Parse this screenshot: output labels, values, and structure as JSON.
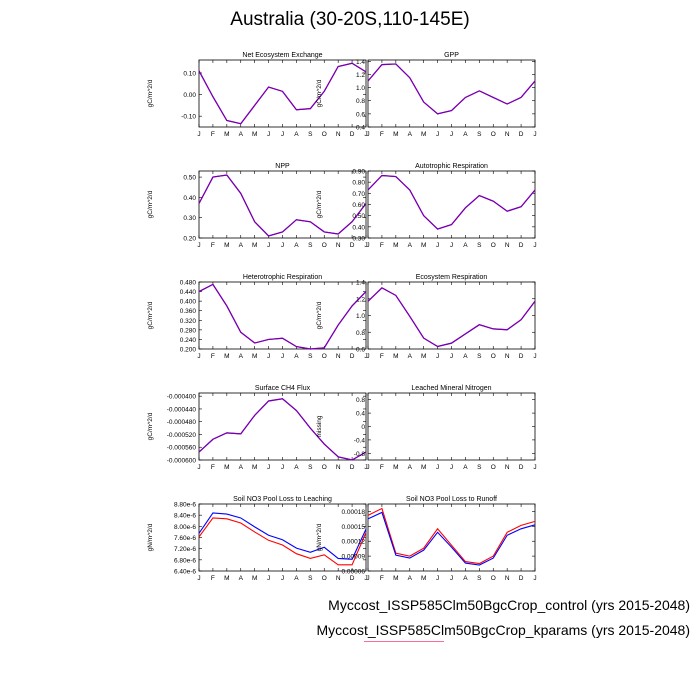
{
  "title": "Australia (30-20S,110-145E)",
  "legend": {
    "lines": [
      {
        "label": "Myccost_ISSP585Clm50BgcCrop_control (yrs 2015-2048)",
        "color": "#0000ff"
      },
      {
        "label": "Myccost_ISSP585Clm50BgcCrop_kparams (yrs 2015-2048)",
        "color": "#ff0000"
      }
    ]
  },
  "colors": {
    "control": "#0000ff",
    "kparams": "#ff0000",
    "overlap": "#6a00c8"
  },
  "chart_data": [
    {
      "type": "line",
      "title": "Net Ecosystem Exchange",
      "ylabel": "gC/m^2/d",
      "categories": [
        "J",
        "F",
        "M",
        "A",
        "M",
        "J",
        "J",
        "A",
        "S",
        "O",
        "N",
        "D",
        "J"
      ],
      "ylim": [
        -0.15,
        0.16
      ],
      "yticks": [
        -0.1,
        0.0,
        0.1
      ],
      "ytick_labels": [
        "-0.10",
        "0.00",
        "0.10"
      ],
      "series": [
        {
          "values": [
            0.11,
            -0.01,
            -0.12,
            -0.135,
            -0.05,
            0.035,
            0.015,
            -0.07,
            -0.065,
            0.015,
            0.13,
            0.145,
            0.105
          ]
        },
        {
          "values": [
            0.11,
            -0.01,
            -0.12,
            -0.135,
            -0.05,
            0.035,
            0.015,
            -0.07,
            -0.065,
            0.015,
            0.13,
            0.145,
            0.105
          ]
        }
      ]
    },
    {
      "type": "line",
      "title": "GPP",
      "ylabel": "gC/m^2/d",
      "categories": [
        "J",
        "F",
        "M",
        "A",
        "M",
        "J",
        "J",
        "A",
        "S",
        "O",
        "N",
        "D",
        "J"
      ],
      "ylim": [
        0.4,
        1.42
      ],
      "yticks": [
        0.4,
        0.6,
        0.8,
        1.0,
        1.2,
        1.4
      ],
      "ytick_labels": [
        "0.4",
        "0.6",
        "0.8",
        "1.0",
        "1.2",
        "1.4"
      ],
      "series": [
        {
          "values": [
            1.1,
            1.35,
            1.36,
            1.15,
            0.78,
            0.6,
            0.65,
            0.85,
            0.95,
            0.85,
            0.75,
            0.85,
            1.1
          ]
        },
        {
          "values": [
            1.1,
            1.35,
            1.36,
            1.15,
            0.78,
            0.6,
            0.65,
            0.85,
            0.95,
            0.85,
            0.75,
            0.85,
            1.1
          ]
        }
      ]
    },
    {
      "type": "line",
      "title": "NPP",
      "ylabel": "gC/m^2/d",
      "categories": [
        "J",
        "F",
        "M",
        "A",
        "M",
        "J",
        "J",
        "A",
        "S",
        "O",
        "N",
        "D",
        "J"
      ],
      "ylim": [
        0.2,
        0.53
      ],
      "yticks": [
        0.2,
        0.3,
        0.4,
        0.5
      ],
      "ytick_labels": [
        "0.20",
        "0.30",
        "0.40",
        "0.50"
      ],
      "series": [
        {
          "values": [
            0.37,
            0.5,
            0.51,
            0.42,
            0.28,
            0.21,
            0.23,
            0.29,
            0.28,
            0.23,
            0.22,
            0.28,
            0.37
          ]
        },
        {
          "values": [
            0.37,
            0.5,
            0.51,
            0.42,
            0.28,
            0.21,
            0.23,
            0.29,
            0.28,
            0.23,
            0.22,
            0.28,
            0.37
          ]
        }
      ]
    },
    {
      "type": "line",
      "title": "Autotrophic Respiration",
      "ylabel": "gC/m^2/d",
      "categories": [
        "J",
        "F",
        "M",
        "A",
        "M",
        "J",
        "J",
        "A",
        "S",
        "O",
        "N",
        "D",
        "J"
      ],
      "ylim": [
        0.3,
        0.9
      ],
      "yticks": [
        0.3,
        0.4,
        0.5,
        0.6,
        0.7,
        0.8,
        0.9
      ],
      "ytick_labels": [
        "0.30",
        "0.40",
        "0.50",
        "0.60",
        "0.70",
        "0.80",
        "0.90"
      ],
      "series": [
        {
          "values": [
            0.73,
            0.86,
            0.85,
            0.73,
            0.5,
            0.38,
            0.42,
            0.57,
            0.68,
            0.63,
            0.54,
            0.58,
            0.73
          ]
        },
        {
          "values": [
            0.73,
            0.86,
            0.85,
            0.73,
            0.5,
            0.38,
            0.42,
            0.57,
            0.68,
            0.63,
            0.54,
            0.58,
            0.73
          ]
        }
      ]
    },
    {
      "type": "line",
      "title": "Heterotrophic Respiration",
      "ylabel": "gC/m^2/d",
      "categories": [
        "J",
        "F",
        "M",
        "A",
        "M",
        "J",
        "J",
        "A",
        "S",
        "O",
        "N",
        "D",
        "J"
      ],
      "ylim": [
        0.2,
        0.48
      ],
      "yticks": [
        0.2,
        0.24,
        0.28,
        0.32,
        0.36,
        0.4,
        0.44,
        0.48
      ],
      "ytick_labels": [
        "0.200",
        "0.240",
        "0.280",
        "0.320",
        "0.360",
        "0.400",
        "0.440",
        "0.480"
      ],
      "series": [
        {
          "values": [
            0.44,
            0.47,
            0.38,
            0.27,
            0.225,
            0.24,
            0.245,
            0.21,
            0.2,
            0.205,
            0.3,
            0.38,
            0.44
          ]
        },
        {
          "values": [
            0.44,
            0.47,
            0.38,
            0.27,
            0.225,
            0.24,
            0.245,
            0.21,
            0.2,
            0.205,
            0.3,
            0.38,
            0.44
          ]
        }
      ]
    },
    {
      "type": "line",
      "title": "Ecosystem Respiration",
      "ylabel": "gC/m^2/d",
      "categories": [
        "J",
        "F",
        "M",
        "A",
        "M",
        "J",
        "J",
        "A",
        "S",
        "O",
        "N",
        "D",
        "J"
      ],
      "ylim": [
        0.6,
        1.4
      ],
      "yticks": [
        0.6,
        0.8,
        1.0,
        1.2,
        1.4
      ],
      "ytick_labels": [
        "0.6",
        "0.8",
        "1.0",
        "1.2",
        "1.4"
      ],
      "series": [
        {
          "values": [
            1.17,
            1.33,
            1.24,
            0.99,
            0.73,
            0.63,
            0.67,
            0.78,
            0.89,
            0.84,
            0.83,
            0.95,
            1.17
          ]
        },
        {
          "values": [
            1.17,
            1.33,
            1.24,
            0.99,
            0.73,
            0.63,
            0.67,
            0.78,
            0.89,
            0.84,
            0.83,
            0.95,
            1.17
          ]
        }
      ]
    },
    {
      "type": "line",
      "title": "Surface CH4 Flux",
      "ylabel": "gC/m^2/d",
      "categories": [
        "J",
        "F",
        "M",
        "A",
        "M",
        "J",
        "J",
        "A",
        "S",
        "O",
        "N",
        "D",
        "J"
      ],
      "ylim": [
        -0.0006,
        -0.00039
      ],
      "yticks": [
        -0.0006,
        -0.00056,
        -0.00052,
        -0.00048,
        -0.00044,
        -0.0004
      ],
      "ytick_labels": [
        "-0.000600",
        "-0.000560",
        "-0.000520",
        "-0.000480",
        "-0.000440",
        "-0.000400"
      ],
      "series": [
        {
          "values": [
            -0.000575,
            -0.000535,
            -0.000515,
            -0.000518,
            -0.00046,
            -0.000415,
            -0.000408,
            -0.000445,
            -0.0005,
            -0.00055,
            -0.00059,
            -0.0006,
            -0.000575
          ]
        },
        {
          "values": [
            -0.000575,
            -0.000535,
            -0.000515,
            -0.000518,
            -0.00046,
            -0.000415,
            -0.000408,
            -0.000445,
            -0.0005,
            -0.00055,
            -0.00059,
            -0.0006,
            -0.000575
          ]
        }
      ]
    },
    {
      "type": "line",
      "title": "Leached Mineral Nitrogen",
      "ylabel": "missing",
      "categories": [
        "J",
        "F",
        "M",
        "A",
        "M",
        "J",
        "J",
        "A",
        "S",
        "O",
        "N",
        "D",
        "J"
      ],
      "ylim": [
        -1.0,
        1.0
      ],
      "yticks": [
        -0.8,
        -0.4,
        0.0,
        0.4,
        0.8
      ],
      "ytick_labels": [
        "-0.8",
        "-0.4",
        "0",
        "0.4",
        "0.8"
      ],
      "series": []
    },
    {
      "type": "line",
      "title": "Soil NO3 Pool Loss to Leaching",
      "ylabel": "gN/m^2/d",
      "categories": [
        "J",
        "F",
        "M",
        "A",
        "M",
        "J",
        "J",
        "A",
        "S",
        "O",
        "N",
        "D",
        "J"
      ],
      "ylim": [
        6.4e-06,
        8.8e-06
      ],
      "yticks": [
        6.4e-06,
        6.8e-06,
        7.2e-06,
        7.6e-06,
        8e-06,
        8.4e-06,
        8.8e-06
      ],
      "ytick_labels": [
        "6.40e-6",
        "6.80e-6",
        "7.20e-6",
        "7.60e-6",
        "8.00e-6",
        "8.40e-6",
        "8.80e-6"
      ],
      "series": [
        {
          "values": [
            7.75e-06,
            8.48e-06,
            8.44e-06,
            8.3e-06,
            7.98e-06,
            7.68e-06,
            7.52e-06,
            7.22e-06,
            7.07e-06,
            7.25e-06,
            6.85e-06,
            6.82e-06,
            7.9e-06
          ]
        },
        {
          "values": [
            7.62e-06,
            8.3e-06,
            8.27e-06,
            8.12e-06,
            7.8e-06,
            7.5e-06,
            7.33e-06,
            7.02e-06,
            6.85e-06,
            6.98e-06,
            6.62e-06,
            6.62e-06,
            7.78e-06
          ]
        }
      ]
    },
    {
      "type": "line",
      "title": "Soil NO3 Pool Loss to Runoff",
      "ylabel": "gN/m^2/d",
      "categories": [
        "J",
        "F",
        "M",
        "A",
        "M",
        "J",
        "J",
        "A",
        "S",
        "O",
        "N",
        "D",
        "J"
      ],
      "ylim": [
        6e-05,
        0.000195
      ],
      "yticks": [
        6e-05,
        9e-05,
        0.00012,
        0.00015,
        0.00018
      ],
      "ytick_labels": [
        "0.00006",
        "0.00009",
        "0.00012",
        "0.00015",
        "0.00018"
      ],
      "series": [
        {
          "values": [
            0.000165,
            0.000178,
            9.2e-05,
            8.6e-05,
            0.000102,
            0.000138,
            0.000108,
            7.6e-05,
            7.2e-05,
            8.6e-05,
            0.000132,
            0.000145,
            0.000153
          ]
        },
        {
          "values": [
            0.000172,
            0.000186,
            9.6e-05,
            9e-05,
            0.000106,
            0.000145,
            0.000112,
            7.9e-05,
            7.5e-05,
            9e-05,
            0.000138,
            0.000152,
            0.00016
          ]
        }
      ]
    }
  ]
}
